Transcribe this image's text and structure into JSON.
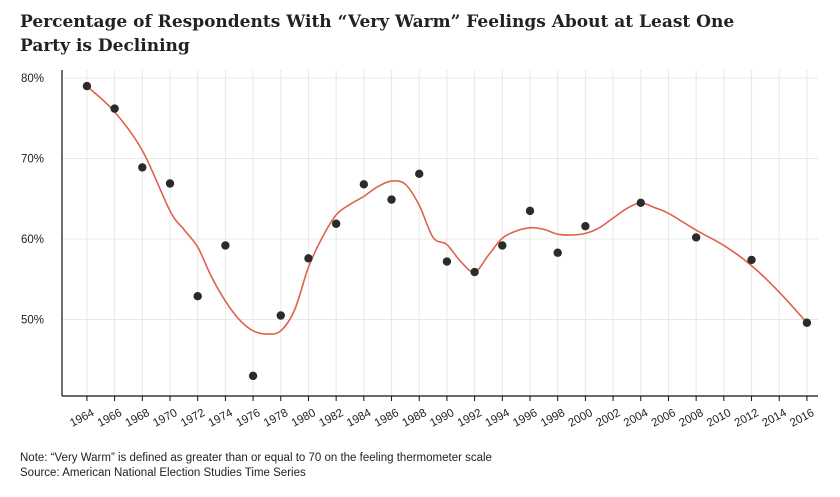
{
  "chart_data": {
    "type": "scatter",
    "title": "Percentage of Respondents With “Very Warm” Feelings About at Least One Party is Declining",
    "xlabel": "",
    "ylabel": "",
    "x": [
      1964,
      1966,
      1968,
      1970,
      1972,
      1974,
      1976,
      1978,
      1980,
      1982,
      1984,
      1986,
      1988,
      1990,
      1992,
      1994,
      1996,
      1998,
      2000,
      2004,
      2008,
      2012,
      2016
    ],
    "y": [
      79,
      76.2,
      68.9,
      66.9,
      52.9,
      59.2,
      43,
      50.5,
      57.6,
      61.9,
      66.8,
      64.9,
      68.1,
      57.2,
      55.9,
      59.2,
      63.5,
      58.3,
      61.6,
      64.5,
      60.2,
      57.4,
      49.6
    ],
    "trend": {
      "x": [
        1964,
        1966,
        1968,
        1970,
        1971,
        1972,
        1973,
        1974,
        1975,
        1976,
        1977,
        1978,
        1979,
        1980,
        1981,
        1982,
        1983,
        1984,
        1985,
        1986,
        1987,
        1988,
        1989,
        1990,
        1991,
        1992,
        1993,
        1994,
        1995,
        1996,
        1997,
        1998,
        1999,
        2000,
        2001,
        2002,
        2003,
        2004,
        2005,
        2006,
        2008,
        2010,
        2012,
        2014,
        2016
      ],
      "y": [
        79,
        75.8,
        71,
        63.5,
        61.2,
        59,
        55.3,
        52.3,
        50,
        48.6,
        48.2,
        48.6,
        51.2,
        56.5,
        60.2,
        63,
        64.3,
        65.3,
        66.5,
        67.2,
        66.8,
        64.2,
        60.2,
        59.3,
        57.2,
        55.9,
        58,
        60.1,
        61,
        61.4,
        61.2,
        60.6,
        60.5,
        60.7,
        61.4,
        62.6,
        63.8,
        64.5,
        63.9,
        63.2,
        61.1,
        59.2,
        56.7,
        53.4,
        49.6
      ]
    },
    "xticks": [
      1964,
      1966,
      1968,
      1970,
      1972,
      1974,
      1976,
      1978,
      1980,
      1982,
      1984,
      1986,
      1988,
      1990,
      1992,
      1994,
      1996,
      1998,
      2000,
      2002,
      2004,
      2006,
      2008,
      2010,
      2012,
      2014,
      2016
    ],
    "yticks": [
      50,
      60,
      70,
      80
    ],
    "ytick_labels": [
      "50%",
      "60%",
      "70%",
      "80%"
    ],
    "xlim": [
      1962.2,
      2016.8
    ],
    "ylim": [
      40.5,
      81
    ],
    "grid": true,
    "colors": {
      "points": "#2b2b2b",
      "trend": "#e0614b",
      "grid": "#e8e8e8",
      "axis": "#111111"
    }
  },
  "footer": {
    "note": "Note: “Very Warm” is defined as greater than or equal to 70 on the feeling thermometer scale",
    "source": "Source: American National Election Studies Time Series"
  }
}
